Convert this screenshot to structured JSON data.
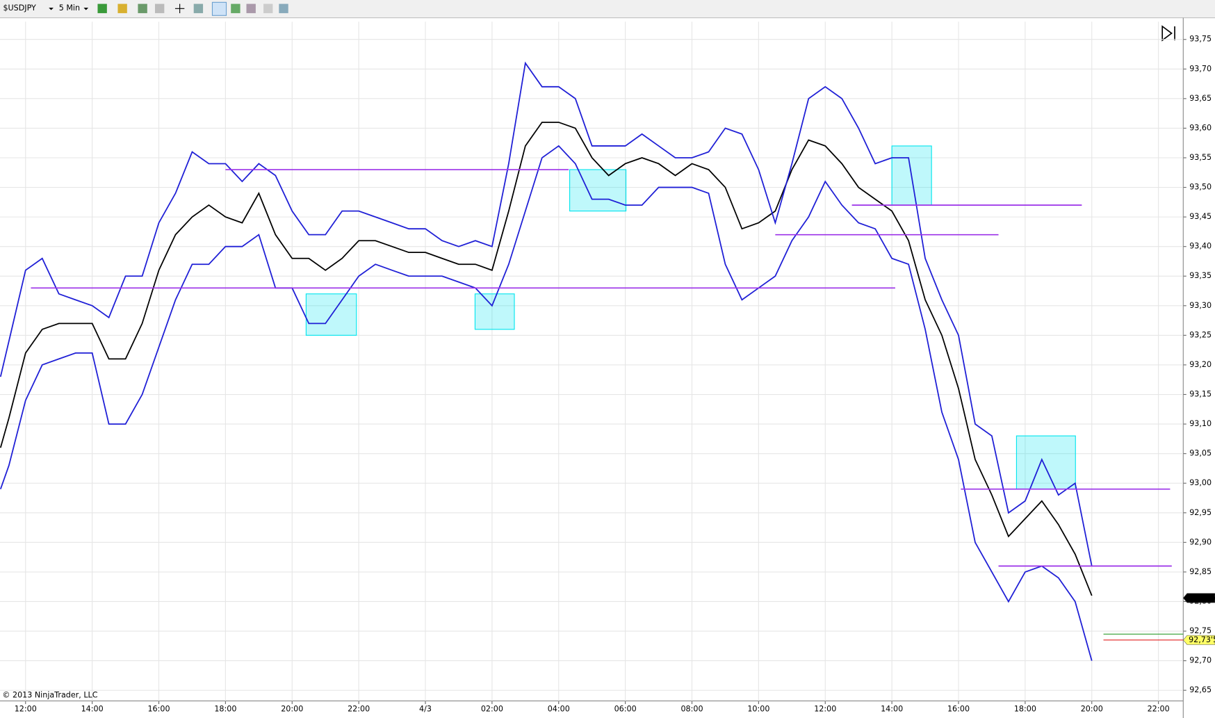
{
  "toolbar": {
    "symbol": "$USDJPY",
    "interval": "5 Min"
  },
  "chart_data": {
    "type": "line",
    "annotation": "© 2013 NinjaTrader, LLC",
    "x": [
      -0.75,
      -0.5,
      0,
      0.5,
      1,
      1.5,
      2,
      2.5,
      3,
      3.5,
      4,
      4.5,
      5,
      5.5,
      6,
      6.5,
      7,
      7.5,
      8,
      8.5,
      9,
      9.5,
      10,
      10.5,
      11,
      11.5,
      12,
      12.5,
      13,
      13.5,
      14,
      14.5,
      15,
      15.5,
      16,
      16.5,
      17,
      17.5,
      18,
      18.5,
      19,
      19.5,
      20,
      20.5,
      21,
      21.5,
      22,
      22.5,
      23,
      23.5,
      24,
      24.5,
      25,
      25.5,
      26,
      26.5,
      27,
      27.5,
      28,
      28.5,
      29,
      29.5,
      30,
      30.5,
      31,
      31.5,
      32
    ],
    "series": [
      {
        "color": "#000000",
        "values": [
          93.06,
          93.11,
          93.22,
          93.26,
          93.27,
          93.27,
          93.27,
          93.21,
          93.21,
          93.27,
          93.36,
          93.42,
          93.45,
          93.47,
          93.45,
          93.44,
          93.49,
          93.42,
          93.38,
          93.38,
          93.36,
          93.38,
          93.41,
          93.41,
          93.4,
          93.39,
          93.39,
          93.38,
          93.37,
          93.37,
          93.36,
          93.46,
          93.57,
          93.61,
          93.61,
          93.6,
          93.55,
          93.52,
          93.54,
          93.55,
          93.54,
          93.52,
          93.54,
          93.53,
          93.5,
          93.43,
          93.44,
          93.46,
          93.53,
          93.58,
          93.57,
          93.54,
          93.5,
          93.48,
          93.46,
          93.41,
          93.31,
          93.25,
          93.16,
          93.04,
          92.98,
          92.91,
          92.94,
          92.97,
          92.93,
          92.88,
          92.81
        ]
      },
      {
        "color": "#1f1fd6",
        "values": [
          93.18,
          93.24,
          93.36,
          93.38,
          93.32,
          93.31,
          93.3,
          93.28,
          93.35,
          93.35,
          93.44,
          93.49,
          93.56,
          93.54,
          93.54,
          93.51,
          93.54,
          93.52,
          93.46,
          93.42,
          93.42,
          93.46,
          93.46,
          93.45,
          93.44,
          93.43,
          93.43,
          93.41,
          93.4,
          93.41,
          93.4,
          93.54,
          93.71,
          93.67,
          93.67,
          93.65,
          93.57,
          93.57,
          93.57,
          93.59,
          93.57,
          93.55,
          93.55,
          93.56,
          93.6,
          93.59,
          93.53,
          93.44,
          93.54,
          93.65,
          93.67,
          93.65,
          93.6,
          93.54,
          93.55,
          93.55,
          93.38,
          93.31,
          93.25,
          93.1,
          93.08,
          92.95,
          92.97,
          93.04,
          92.98,
          93.0,
          92.86
        ]
      },
      {
        "color": "#1f1fd6",
        "values": [
          92.99,
          93.03,
          93.14,
          93.2,
          93.21,
          93.22,
          93.22,
          93.1,
          93.1,
          93.15,
          93.23,
          93.31,
          93.37,
          93.37,
          93.4,
          93.4,
          93.42,
          93.33,
          93.33,
          93.27,
          93.27,
          93.31,
          93.35,
          93.37,
          93.36,
          93.35,
          93.35,
          93.35,
          93.34,
          93.33,
          93.3,
          93.37,
          93.46,
          93.55,
          93.57,
          93.54,
          93.48,
          93.48,
          93.47,
          93.47,
          93.5,
          93.5,
          93.5,
          93.49,
          93.37,
          93.31,
          93.33,
          93.35,
          93.41,
          93.45,
          93.51,
          93.47,
          93.44,
          93.43,
          93.38,
          93.37,
          93.26,
          93.12,
          93.04,
          92.9,
          92.85,
          92.8,
          92.85,
          92.86,
          92.84,
          92.8,
          92.7
        ]
      }
    ],
    "levels_color": "#9b30e8",
    "levels": [
      {
        "value": 93.53,
        "from": 6,
        "to": 16.3
      },
      {
        "value": 93.33,
        "from": 0.16,
        "to": 26.1
      },
      {
        "value": 93.47,
        "from": 24.8,
        "to": 31.7
      },
      {
        "value": 93.42,
        "from": 22.5,
        "to": 29.2
      },
      {
        "value": 92.99,
        "from": 28.07,
        "to": 34.35
      },
      {
        "value": 92.86,
        "from": 29.2,
        "to": 34.4
      }
    ],
    "zones_color": "#00e5ee",
    "zones": [
      {
        "x": [
          8.42,
          9.93
        ],
        "y": [
          93.25,
          93.32
        ]
      },
      {
        "x": [
          13.49,
          14.67
        ],
        "y": [
          93.26,
          93.32
        ]
      },
      {
        "x": [
          16.33,
          18.02
        ],
        "y": [
          93.46,
          93.53
        ]
      },
      {
        "x": [
          26,
          27.19
        ],
        "y": [
          93.47,
          93.57
        ]
      },
      {
        "x": [
          29.74,
          31.51
        ],
        "y": [
          92.99,
          93.08
        ]
      }
    ],
    "price_lines": [
      {
        "value": 92.745,
        "color": "#2e9e2e",
        "from": 32.35
      },
      {
        "value": 92.735,
        "color": "#e02020",
        "from": 32.35
      }
    ],
    "price_markers": [
      {
        "value": 92.806,
        "label": "92,806",
        "color": "#000000"
      },
      {
        "value": 92.735,
        "label": "92,73'5",
        "color": "#ffff66"
      }
    ],
    "xlim": [
      -0.767,
      34.744
    ],
    "ylim": [
      92.632,
      93.78
    ],
    "grid": true,
    "xticks": [
      {
        "value": 0,
        "label": "12:00"
      },
      {
        "value": 2,
        "label": "14:00"
      },
      {
        "value": 4,
        "label": "16:00"
      },
      {
        "value": 6,
        "label": "18:00"
      },
      {
        "value": 8,
        "label": "20:00"
      },
      {
        "value": 10,
        "label": "22:00"
      },
      {
        "value": 12,
        "label": "4/3"
      },
      {
        "value": 14,
        "label": "02:00"
      },
      {
        "value": 16,
        "label": "04:00"
      },
      {
        "value": 18,
        "label": "06:00"
      },
      {
        "value": 20,
        "label": "08:00"
      },
      {
        "value": 22,
        "label": "10:00"
      },
      {
        "value": 24,
        "label": "12:00"
      },
      {
        "value": 26,
        "label": "14:00"
      },
      {
        "value": 28,
        "label": "16:00"
      },
      {
        "value": 30,
        "label": "18:00"
      },
      {
        "value": 32,
        "label": "20:00"
      },
      {
        "value": 34,
        "label": "22:00"
      }
    ],
    "yticks": [
      {
        "value": 92.65,
        "label": "92,65"
      },
      {
        "value": 92.7,
        "label": "92,70"
      },
      {
        "value": 92.75,
        "label": "92,75"
      },
      {
        "value": 92.8,
        "label": "92,80"
      },
      {
        "value": 92.85,
        "label": "92,85"
      },
      {
        "value": 92.9,
        "label": "92,90"
      },
      {
        "value": 92.95,
        "label": "92,95"
      },
      {
        "value": 93,
        "label": "93,00"
      },
      {
        "value": 93.05,
        "label": "93,05"
      },
      {
        "value": 93.1,
        "label": "93,10"
      },
      {
        "value": 93.15,
        "label": "93,15"
      },
      {
        "value": 93.2,
        "label": "93,20"
      },
      {
        "value": 93.25,
        "label": "93,25"
      },
      {
        "value": 93.3,
        "label": "93,30"
      },
      {
        "value": 93.35,
        "label": "93,35"
      },
      {
        "value": 93.4,
        "label": "93,40"
      },
      {
        "value": 93.45,
        "label": "93,45"
      },
      {
        "value": 93.5,
        "label": "93,50"
      },
      {
        "value": 93.55,
        "label": "93,55"
      },
      {
        "value": 93.6,
        "label": "93,60"
      },
      {
        "value": 93.65,
        "label": "93,65"
      },
      {
        "value": 93.7,
        "label": "93,70"
      },
      {
        "value": 93.75,
        "label": "93,75"
      }
    ]
  }
}
